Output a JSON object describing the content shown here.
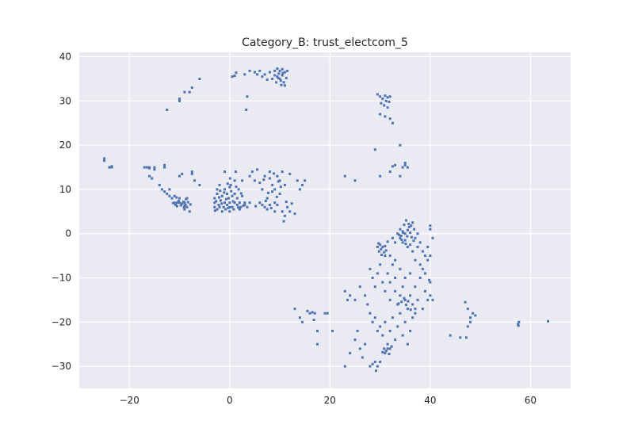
{
  "chart_data": {
    "type": "scatter",
    "title": "Category_B: trust_electcom_5",
    "xlabel": "",
    "ylabel": "",
    "xlim": [
      -30,
      68
    ],
    "ylim": [
      -35,
      41
    ],
    "xticks": [
      "−20",
      "0",
      "20",
      "40",
      "60"
    ],
    "yticks": [
      "−30",
      "−20",
      "−10",
      "0",
      "10",
      "20",
      "30",
      "40"
    ],
    "grid": true,
    "marker_color": "#4c72b0",
    "background_color": "#eaeaf2",
    "points": [
      [
        -25,
        17
      ],
      [
        -25,
        16.5
      ],
      [
        -24,
        15
      ],
      [
        -23.5,
        15.2
      ],
      [
        -23.5,
        15
      ],
      [
        -17,
        15
      ],
      [
        -16.5,
        15
      ],
      [
        -16,
        15
      ],
      [
        -16,
        14.8
      ],
      [
        -16,
        13
      ],
      [
        -15.5,
        12.5
      ],
      [
        -15,
        15
      ],
      [
        -15,
        14.5
      ],
      [
        -14,
        11
      ],
      [
        -13.5,
        10
      ],
      [
        -13,
        15.5
      ],
      [
        -13,
        15
      ],
      [
        -13,
        9.5
      ],
      [
        -12.5,
        9
      ],
      [
        -12,
        10
      ],
      [
        -12,
        8.5
      ],
      [
        -11.5,
        8
      ],
      [
        -11,
        8.5
      ],
      [
        -11,
        7
      ],
      [
        -10.8,
        6.5
      ],
      [
        -10.5,
        7
      ],
      [
        -10.5,
        6.2
      ],
      [
        -10,
        8
      ],
      [
        -10,
        7
      ],
      [
        -10,
        13
      ],
      [
        -9.5,
        13.5
      ],
      [
        -9.5,
        6.8
      ],
      [
        -9.2,
        7.2
      ],
      [
        -9,
        7
      ],
      [
        -9,
        6.3
      ],
      [
        -9,
        5.5
      ],
      [
        -8.8,
        6.5
      ],
      [
        -8.5,
        8
      ],
      [
        -8.5,
        6
      ],
      [
        -8,
        5
      ],
      [
        -7.5,
        14
      ],
      [
        -7.5,
        13.5
      ],
      [
        -7,
        12
      ],
      [
        -6,
        11
      ],
      [
        -12.5,
        28
      ],
      [
        -10,
        30.5
      ],
      [
        -10,
        30
      ],
      [
        -9,
        32
      ],
      [
        -8,
        32
      ],
      [
        -7.5,
        33
      ],
      [
        -6,
        35
      ],
      [
        -8.7,
        7.8
      ],
      [
        -9.7,
        6.4
      ],
      [
        -10.2,
        7.4
      ],
      [
        -11.3,
        6.9
      ],
      [
        -8.3,
        7.1
      ],
      [
        -9.1,
        5.9
      ],
      [
        -10.6,
        8.2
      ],
      [
        -7.8,
        6.6
      ],
      [
        -3,
        6
      ],
      [
        -3,
        7
      ],
      [
        -3,
        8
      ],
      [
        -2.5,
        9
      ],
      [
        -2.5,
        10
      ],
      [
        -2.5,
        5.5
      ],
      [
        -2.2,
        6.5
      ],
      [
        -2,
        11
      ],
      [
        -2,
        6
      ],
      [
        -1.8,
        7.5
      ],
      [
        -1.5,
        5
      ],
      [
        -1.5,
        8.5
      ],
      [
        -1.2,
        6
      ],
      [
        -1,
        14
      ],
      [
        -1,
        7
      ],
      [
        -1,
        10
      ],
      [
        -0.8,
        5.5
      ],
      [
        -0.5,
        6.5
      ],
      [
        -0.5,
        9
      ],
      [
        -0.2,
        8
      ],
      [
        0,
        5
      ],
      [
        0,
        6
      ],
      [
        0,
        7
      ],
      [
        0,
        10.5
      ],
      [
        0.2,
        11
      ],
      [
        0.5,
        8.5
      ],
      [
        0.5,
        6
      ],
      [
        0.8,
        5.5
      ],
      [
        1,
        7
      ],
      [
        1,
        9
      ],
      [
        1,
        12
      ],
      [
        1.2,
        14
      ],
      [
        1.5,
        8
      ],
      [
        1.5,
        6.5
      ],
      [
        1.8,
        10
      ],
      [
        2,
        7
      ],
      [
        2,
        5.5
      ],
      [
        2.2,
        6
      ],
      [
        2.5,
        8.5
      ],
      [
        2.5,
        12
      ],
      [
        3,
        6.5
      ],
      [
        3,
        7
      ],
      [
        3.5,
        6
      ],
      [
        4,
        7
      ],
      [
        -2.7,
        7.3
      ],
      [
        -2.1,
        8.2
      ],
      [
        -1.6,
        6.8
      ],
      [
        -1.1,
        9.3
      ],
      [
        -0.7,
        7.8
      ],
      [
        -0.3,
        5.8
      ],
      [
        0.3,
        9.6
      ],
      [
        0.7,
        7.3
      ],
      [
        1.3,
        10.6
      ],
      [
        1.7,
        5.9
      ],
      [
        2.3,
        9.1
      ],
      [
        -2.9,
        5.2
      ],
      [
        -1.9,
        9.7
      ],
      [
        0.1,
        12.5
      ],
      [
        -0.4,
        11.3
      ],
      [
        2.7,
        6.3
      ],
      [
        4,
        13
      ],
      [
        4.5,
        14
      ],
      [
        5,
        12
      ],
      [
        5.5,
        14.5
      ],
      [
        6,
        11.5
      ],
      [
        6,
        7
      ],
      [
        6.5,
        6.5
      ],
      [
        6.5,
        10
      ],
      [
        7,
        13
      ],
      [
        7,
        6
      ],
      [
        7.5,
        5.5
      ],
      [
        7.5,
        8
      ],
      [
        8,
        14
      ],
      [
        8,
        6.5
      ],
      [
        8,
        12.5
      ],
      [
        8.5,
        9.5
      ],
      [
        8.5,
        11
      ],
      [
        9,
        5
      ],
      [
        9,
        7
      ],
      [
        9,
        10
      ],
      [
        9.5,
        13
      ],
      [
        9.5,
        6.5
      ],
      [
        10,
        12
      ],
      [
        10,
        9
      ],
      [
        10.5,
        14
      ],
      [
        10.5,
        5
      ],
      [
        11,
        11
      ],
      [
        11,
        4
      ],
      [
        11.5,
        6
      ],
      [
        12,
        5
      ],
      [
        12,
        13.5
      ],
      [
        13,
        4.5
      ],
      [
        13.5,
        12
      ],
      [
        14,
        10
      ],
      [
        14.5,
        11
      ],
      [
        15,
        12
      ],
      [
        7.2,
        7.4
      ],
      [
        8.3,
        5.8
      ],
      [
        9.4,
        8.3
      ],
      [
        10.2,
        10.6
      ],
      [
        6.8,
        12.2
      ],
      [
        9.7,
        11.8
      ],
      [
        8.8,
        13.6
      ],
      [
        11.3,
        7.2
      ],
      [
        10.8,
        2.8
      ],
      [
        12.4,
        6.8
      ],
      [
        5.2,
        6.2
      ],
      [
        7.7,
        9.2
      ],
      [
        0.5,
        35.5
      ],
      [
        1,
        35.7
      ],
      [
        1.3,
        36.4
      ],
      [
        3,
        36
      ],
      [
        4,
        36.8
      ],
      [
        5,
        36.5
      ],
      [
        5.5,
        36
      ],
      [
        6,
        36.8
      ],
      [
        6.5,
        35.5
      ],
      [
        7,
        36
      ],
      [
        7.5,
        34.8
      ],
      [
        8,
        36.5
      ],
      [
        8.5,
        35
      ],
      [
        9,
        35.8
      ],
      [
        9,
        36.8
      ],
      [
        9.3,
        34.2
      ],
      [
        9.5,
        37.3
      ],
      [
        9.5,
        35.5
      ],
      [
        9.8,
        36.2
      ],
      [
        10,
        35
      ],
      [
        10,
        36.8
      ],
      [
        10.2,
        34.6
      ],
      [
        10.3,
        33.6
      ],
      [
        10.5,
        35.8
      ],
      [
        10.5,
        37.2
      ],
      [
        10.8,
        34.2
      ],
      [
        11,
        36.5
      ],
      [
        11,
        33.5
      ],
      [
        11.3,
        35.2
      ],
      [
        11.5,
        36.8
      ],
      [
        3.5,
        31
      ],
      [
        3.3,
        28
      ],
      [
        9.7,
        35.2
      ],
      [
        10.6,
        36.3
      ],
      [
        29.5,
        31.5
      ],
      [
        30,
        31
      ],
      [
        30.2,
        29.5
      ],
      [
        30.5,
        30.5
      ],
      [
        30.8,
        29
      ],
      [
        31,
        31.2
      ],
      [
        31.2,
        30
      ],
      [
        31.5,
        30.8
      ],
      [
        31.5,
        28.5
      ],
      [
        31.8,
        29.8
      ],
      [
        32,
        31
      ],
      [
        30,
        27
      ],
      [
        31,
        26.5
      ],
      [
        32,
        26
      ],
      [
        32.5,
        25
      ],
      [
        29,
        19
      ],
      [
        34,
        20
      ],
      [
        33,
        15.5
      ],
      [
        32.5,
        15.2
      ],
      [
        34.5,
        15
      ],
      [
        35,
        16
      ],
      [
        35,
        15.5
      ],
      [
        35.5,
        15
      ],
      [
        23,
        13
      ],
      [
        25,
        12
      ],
      [
        30,
        13
      ],
      [
        32,
        14
      ],
      [
        34,
        13
      ],
      [
        29.5,
        -3
      ],
      [
        29.8,
        -4
      ],
      [
        30,
        -2.5
      ],
      [
        30.2,
        -3.5
      ],
      [
        30.5,
        -3
      ],
      [
        30.8,
        -4.2
      ],
      [
        31,
        -2.8
      ],
      [
        31.2,
        -3.8
      ],
      [
        30.3,
        -4.8
      ],
      [
        29.7,
        -2.2
      ],
      [
        31.5,
        -1.8
      ],
      [
        32,
        -5
      ],
      [
        32.5,
        -1
      ],
      [
        33,
        -2
      ],
      [
        33,
        -6
      ],
      [
        33.5,
        0
      ],
      [
        34,
        -1
      ],
      [
        34,
        1
      ],
      [
        34.2,
        -0.5
      ],
      [
        34.5,
        0.5
      ],
      [
        34.5,
        -2
      ],
      [
        34.8,
        2
      ],
      [
        35,
        0
      ],
      [
        35,
        -1.5
      ],
      [
        35.2,
        3
      ],
      [
        35.5,
        0.8
      ],
      [
        35.5,
        -3
      ],
      [
        35.8,
        1.5
      ],
      [
        36,
        0.2
      ],
      [
        36,
        -2.5
      ],
      [
        36.3,
        -0.8
      ],
      [
        36.5,
        2.5
      ],
      [
        36.5,
        -4
      ],
      [
        36.8,
        1
      ],
      [
        37,
        -1
      ],
      [
        37,
        -6
      ],
      [
        37.5,
        0
      ],
      [
        37.5,
        -3
      ],
      [
        38,
        -7
      ],
      [
        38,
        -2
      ],
      [
        38.5,
        -8
      ],
      [
        38.5,
        -4
      ],
      [
        39,
        -5
      ],
      [
        39,
        -9
      ],
      [
        39.5,
        -6
      ],
      [
        39.5,
        -3
      ],
      [
        40,
        1
      ],
      [
        40,
        -5
      ],
      [
        40.5,
        -1
      ],
      [
        40,
        1.8
      ],
      [
        34.6,
        0.2
      ],
      [
        35.4,
        -0.6
      ],
      [
        36.2,
        1.8
      ],
      [
        35.1,
        -2.3
      ],
      [
        34.3,
        -1.4
      ],
      [
        36.7,
        -1.6
      ],
      [
        33.8,
        -0.3
      ],
      [
        35.7,
        2.2
      ],
      [
        28,
        -8
      ],
      [
        28.5,
        -10
      ],
      [
        29,
        -12
      ],
      [
        29.5,
        -9
      ],
      [
        30,
        -7
      ],
      [
        30.5,
        -11
      ],
      [
        31,
        -13
      ],
      [
        31,
        -5
      ],
      [
        31.5,
        -9
      ],
      [
        32,
        -11
      ],
      [
        32,
        -15
      ],
      [
        32.5,
        -7
      ],
      [
        33,
        -13
      ],
      [
        33,
        -10
      ],
      [
        33.5,
        -16
      ],
      [
        34,
        -14
      ],
      [
        34,
        -8
      ],
      [
        34.5,
        -12
      ],
      [
        35,
        -15
      ],
      [
        35,
        -10
      ],
      [
        35.5,
        -17
      ],
      [
        36,
        -14
      ],
      [
        36,
        -9
      ],
      [
        36.5,
        -16
      ],
      [
        37,
        -12
      ],
      [
        37,
        -18
      ],
      [
        37.5,
        -15
      ],
      [
        38,
        -10
      ],
      [
        38.5,
        -17
      ],
      [
        39,
        -13
      ],
      [
        39.5,
        -15
      ],
      [
        40,
        -11
      ],
      [
        40,
        -14
      ],
      [
        40.5,
        -15
      ],
      [
        39.8,
        -10.5
      ],
      [
        34.3,
        -15.4
      ],
      [
        35.2,
        -16.1
      ],
      [
        34.8,
        -14.6
      ],
      [
        35.6,
        -15.3
      ],
      [
        33.7,
        -15.8
      ],
      [
        36.1,
        -17.2
      ],
      [
        27,
        -14
      ],
      [
        26,
        -12
      ],
      [
        25,
        -15
      ],
      [
        24,
        -14
      ],
      [
        23,
        -13
      ],
      [
        23.5,
        -15
      ],
      [
        27.5,
        -16
      ],
      [
        28,
        -18
      ],
      [
        28.5,
        -20
      ],
      [
        29,
        -19
      ],
      [
        29.5,
        -22
      ],
      [
        30,
        -21
      ],
      [
        30.5,
        -23
      ],
      [
        31,
        -20
      ],
      [
        31.5,
        -25
      ],
      [
        32,
        -22
      ],
      [
        32.5,
        -19
      ],
      [
        33,
        -24
      ],
      [
        33.5,
        -21
      ],
      [
        34,
        -18
      ],
      [
        34.5,
        -23
      ],
      [
        35,
        -20
      ],
      [
        35.5,
        -25
      ],
      [
        36,
        -22
      ],
      [
        36.5,
        -19
      ],
      [
        37,
        -17
      ],
      [
        30.8,
        -26
      ],
      [
        31,
        -27
      ],
      [
        31.2,
        -26.5
      ],
      [
        31.5,
        -26
      ],
      [
        31.8,
        -27.2
      ],
      [
        32,
        -26
      ],
      [
        32.3,
        -25.5
      ],
      [
        30.5,
        -26.8
      ],
      [
        29,
        -29
      ],
      [
        29.5,
        -30
      ],
      [
        28.5,
        -29.5
      ],
      [
        30,
        -29
      ],
      [
        29.2,
        -31
      ],
      [
        28,
        -30
      ],
      [
        26,
        -26
      ],
      [
        27,
        -25
      ],
      [
        25,
        -24
      ],
      [
        25.5,
        -22
      ],
      [
        26.5,
        -28
      ],
      [
        24,
        -27
      ],
      [
        23,
        -30
      ],
      [
        13,
        -17
      ],
      [
        14,
        -19
      ],
      [
        14.5,
        -20
      ],
      [
        15.5,
        -17.5
      ],
      [
        16,
        -18
      ],
      [
        16.5,
        -17.8
      ],
      [
        17,
        -18
      ],
      [
        17.5,
        -22
      ],
      [
        17.5,
        -25
      ],
      [
        19,
        -18
      ],
      [
        19.5,
        -18
      ],
      [
        20.5,
        -22
      ],
      [
        16.8,
        -19.5
      ],
      [
        44,
        -23
      ],
      [
        46,
        -23.5
      ],
      [
        47,
        -15.5
      ],
      [
        47.5,
        -21
      ],
      [
        47.5,
        -17
      ],
      [
        48,
        -19
      ],
      [
        48,
        -20
      ],
      [
        48.5,
        -18
      ],
      [
        49,
        -18.5
      ],
      [
        47.2,
        -23.5
      ],
      [
        57.5,
        -20.5
      ],
      [
        57.7,
        -20
      ],
      [
        57.6,
        -20.8
      ],
      [
        63.5,
        -19.8
      ]
    ]
  }
}
